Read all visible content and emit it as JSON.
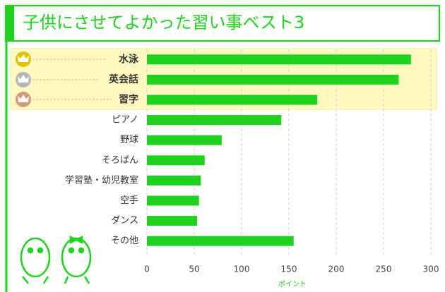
{
  "chart_data": {
    "type": "bar",
    "orientation": "horizontal",
    "title": "子供にさせてよかった習い事ベスト3",
    "categories": [
      "水泳",
      "英会話",
      "習字",
      "ピアノ",
      "野球",
      "そろばん",
      "学習塾・幼児教室",
      "空手",
      "ダンス",
      "その他"
    ],
    "values": [
      279,
      266,
      180,
      142,
      79,
      61,
      57,
      55,
      53,
      155
    ],
    "color": "#1ed21e",
    "xlabel": "ポイント",
    "xlim": [
      0,
      300
    ],
    "xticks": [
      0,
      50,
      100,
      150,
      200,
      250,
      300
    ],
    "grid": true
  }
}
